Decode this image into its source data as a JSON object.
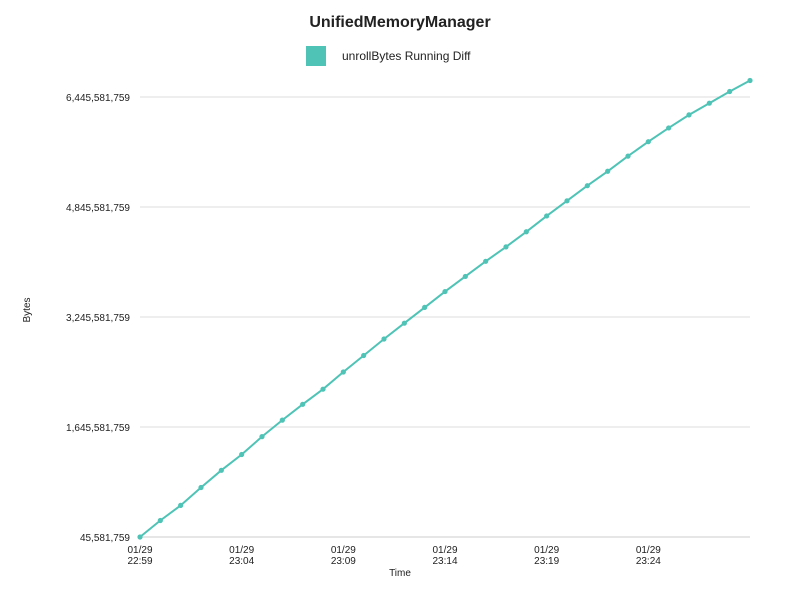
{
  "chart_data": {
    "type": "line",
    "title": "UnifiedMemoryManager",
    "xlabel": "Time",
    "ylabel": "Bytes",
    "legend_position": "top-center",
    "grid": "horizontal",
    "colors": {
      "series": "#4ec3b6",
      "grid": "#dddddd",
      "axis": "#cccccc"
    },
    "x_ticks": [
      {
        "date": "01/29",
        "time": "22:59"
      },
      {
        "date": "01/29",
        "time": "23:04"
      },
      {
        "date": "01/29",
        "time": "23:09"
      },
      {
        "date": "01/29",
        "time": "23:14"
      },
      {
        "date": "01/29",
        "time": "23:19"
      },
      {
        "date": "01/29",
        "time": "23:24"
      }
    ],
    "y_ticks": [
      "45,581,759",
      "1,645,581,759",
      "3,245,581,759",
      "4,845,581,759",
      "6,445,581,759"
    ],
    "ylim": [
      45581759,
      6445581759
    ],
    "xlim": [
      "01/29 22:59",
      "01/29 23:29"
    ],
    "series": [
      {
        "name": "unrollBytes Running Diff",
        "x": [
          "01/29 22:59",
          "01/29 23:00",
          "01/29 23:01",
          "01/29 23:02",
          "01/29 23:03",
          "01/29 23:04",
          "01/29 23:05",
          "01/29 23:06",
          "01/29 23:07",
          "01/29 23:08",
          "01/29 23:09",
          "01/29 23:10",
          "01/29 23:11",
          "01/29 23:12",
          "01/29 23:13",
          "01/29 23:14",
          "01/29 23:15",
          "01/29 23:16",
          "01/29 23:17",
          "01/29 23:18",
          "01/29 23:19",
          "01/29 23:20",
          "01/29 23:21",
          "01/29 23:22",
          "01/29 23:23",
          "01/29 23:24",
          "01/29 23:25",
          "01/29 23:26",
          "01/29 23:27",
          "01/29 23:28",
          "01/29 23:29"
        ],
        "values": [
          45581759,
          285581759,
          505581759,
          765581759,
          1015581759,
          1245581759,
          1505581759,
          1745581759,
          1975581759,
          2195581759,
          2445581759,
          2685581759,
          2925581759,
          3155581759,
          3385581759,
          3615581759,
          3835581759,
          4055581759,
          4265581759,
          4485581759,
          4715581759,
          4935581759,
          5155581759,
          5365581759,
          5585581759,
          5795581759,
          5995581759,
          6185581759,
          6355581759,
          6525581759,
          6685581759
        ]
      }
    ]
  }
}
